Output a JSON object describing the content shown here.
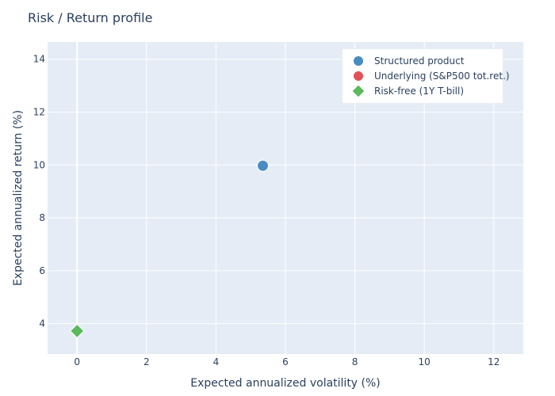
{
  "chart_data": {
    "type": "scatter",
    "title": "Risk / Return profile",
    "xlabel": "Expected annualized volatility (%)",
    "ylabel": "Expected annualized return (%)",
    "xlim": [
      -0.85,
      12.85
    ],
    "ylim": [
      2.85,
      14.65
    ],
    "xticks": [
      0,
      2,
      4,
      6,
      8,
      10,
      12
    ],
    "yticks": [
      4,
      6,
      8,
      10,
      12,
      14
    ],
    "grid": true,
    "legend_position": "top-right",
    "background_color": "#e5ecf6",
    "series": [
      {
        "name": "Structured product",
        "symbol": "circle",
        "color": "#4a8cc2",
        "points": [
          {
            "x": 5.35,
            "y": 9.97
          }
        ]
      },
      {
        "name": "Underlying (S&P500 tot.ret.)",
        "symbol": "circle",
        "color": "#e0525a",
        "points": []
      },
      {
        "name": "Risk-free (1Y T-bill)",
        "symbol": "diamond",
        "color": "#5cb85c",
        "points": [
          {
            "x": 0,
            "y": 3.72
          }
        ]
      }
    ]
  }
}
